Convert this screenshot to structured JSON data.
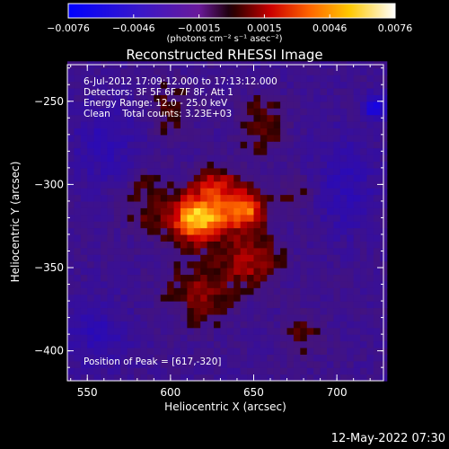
{
  "colors": {
    "background": "#000000",
    "axes": "#ffffff"
  },
  "colorbar": {
    "unit_text": "(photons cm⁻² s⁻¹ asec⁻²)",
    "ticks": [
      "-0.0076",
      "-0.0046",
      "-0.0015",
      "0.0015",
      "0.0046",
      "0.0076"
    ],
    "range": [
      -0.0076,
      0.0076
    ],
    "colormap": "rainbow-to-hot"
  },
  "info": {
    "time": "6-Jul-2012 17:09:12.000 to 17:13:12.000",
    "detectors": "Detectors: 3F 5F 6F 7F 8F, Att 1",
    "energy": "Energy Range: 12.0 - 25.0 keV",
    "method": "Clean",
    "counts": "Total counts: 3.23E+03",
    "peak": "Position of Peak = [617,-320]"
  },
  "stamp": "12-May-2022 07:30",
  "chart_data": {
    "type": "heatmap",
    "title": "Reconstructed RHESSI Image",
    "xlabel": "Heliocentric X (arcsec)",
    "ylabel": "Heliocentric Y (arcsec)",
    "xlim": [
      538,
      728
    ],
    "ylim": [
      -418,
      -228
    ],
    "x_ticks": [
      550,
      600,
      650,
      700
    ],
    "y_ticks": [
      -250,
      -300,
      -350,
      -400
    ],
    "grid": false,
    "peak": {
      "x": 617,
      "y": -320
    },
    "sources": [
      {
        "x": 617,
        "y": -320,
        "sigma_x": 12,
        "sigma_y": 10,
        "amplitude": 0.0076
      },
      {
        "x": 645,
        "y": -315,
        "sigma_x": 9,
        "sigma_y": 8,
        "amplitude": 0.0055
      },
      {
        "x": 628,
        "y": -300,
        "sigma_x": 10,
        "sigma_y": 7,
        "amplitude": 0.0035
      },
      {
        "x": 648,
        "y": -345,
        "sigma_x": 12,
        "sigma_y": 11,
        "amplitude": 0.0032
      },
      {
        "x": 618,
        "y": -365,
        "sigma_x": 14,
        "sigma_y": 13,
        "amplitude": 0.0025
      },
      {
        "x": 655,
        "y": -265,
        "sigma_x": 10,
        "sigma_y": 12,
        "amplitude": 0.0022
      },
      {
        "x": 585,
        "y": -310,
        "sigma_x": 9,
        "sigma_y": 14,
        "amplitude": 0.0018
      },
      {
        "x": 600,
        "y": -255,
        "sigma_x": 9,
        "sigma_y": 12,
        "amplitude": 0.0016
      },
      {
        "x": 680,
        "y": -390,
        "sigma_x": 9,
        "sigma_y": 10,
        "amplitude": 0.0015
      },
      {
        "x": 675,
        "y": -305,
        "sigma_x": 8,
        "sigma_y": 8,
        "amplitude": 0.0014
      }
    ],
    "negative_sources": [
      {
        "x": 723,
        "y": -253,
        "sigma_x": 5,
        "sigma_y": 5,
        "amplitude": -0.005
      },
      {
        "x": 705,
        "y": -300,
        "sigma_x": 12,
        "sigma_y": 20,
        "amplitude": -0.002
      },
      {
        "x": 560,
        "y": -275,
        "sigma_x": 14,
        "sigma_y": 16,
        "amplitude": -0.0018
      },
      {
        "x": 555,
        "y": -390,
        "sigma_x": 14,
        "sigma_y": 14,
        "amplitude": -0.0018
      }
    ],
    "background_level": -0.0012
  }
}
